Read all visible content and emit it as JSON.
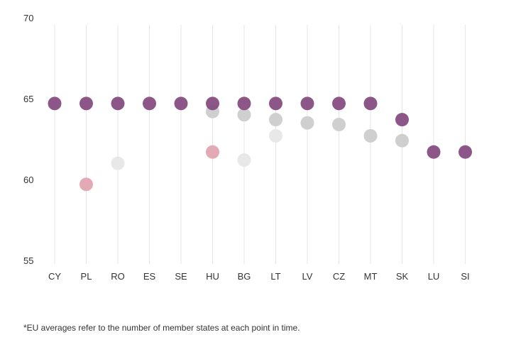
{
  "chart_data": {
    "type": "scatter",
    "categories": [
      "CY",
      "PL",
      "RO",
      "ES",
      "SE",
      "HU",
      "BG",
      "LT",
      "LV",
      "CZ",
      "MT",
      "SK",
      "LU",
      "SI"
    ],
    "ylim": [
      55,
      70
    ],
    "yticks": [
      55,
      60,
      65,
      70
    ],
    "grid": "vertical",
    "series": [
      {
        "name": "series-light",
        "color": "#e8e8e8",
        "values": [
          null,
          null,
          61.0,
          null,
          null,
          null,
          61.2,
          62.7,
          null,
          null,
          null,
          null,
          null,
          null
        ]
      },
      {
        "name": "series-gray",
        "color": "#cfcfcf",
        "values": [
          null,
          null,
          null,
          null,
          null,
          64.2,
          64.0,
          63.7,
          63.5,
          63.4,
          62.7,
          62.4,
          null,
          null
        ]
      },
      {
        "name": "series-pink",
        "color": "#e3aab5",
        "values": [
          null,
          59.7,
          null,
          null,
          null,
          61.7,
          null,
          null,
          null,
          null,
          null,
          null,
          null,
          null
        ]
      },
      {
        "name": "series-purple",
        "color": "#84497f",
        "values": [
          64.7,
          64.7,
          64.7,
          64.7,
          64.7,
          64.7,
          64.7,
          64.7,
          64.7,
          64.7,
          64.7,
          63.7,
          61.7,
          61.7
        ]
      }
    ],
    "footnote": "*EU averages refer to the number of member states at each point in time."
  }
}
